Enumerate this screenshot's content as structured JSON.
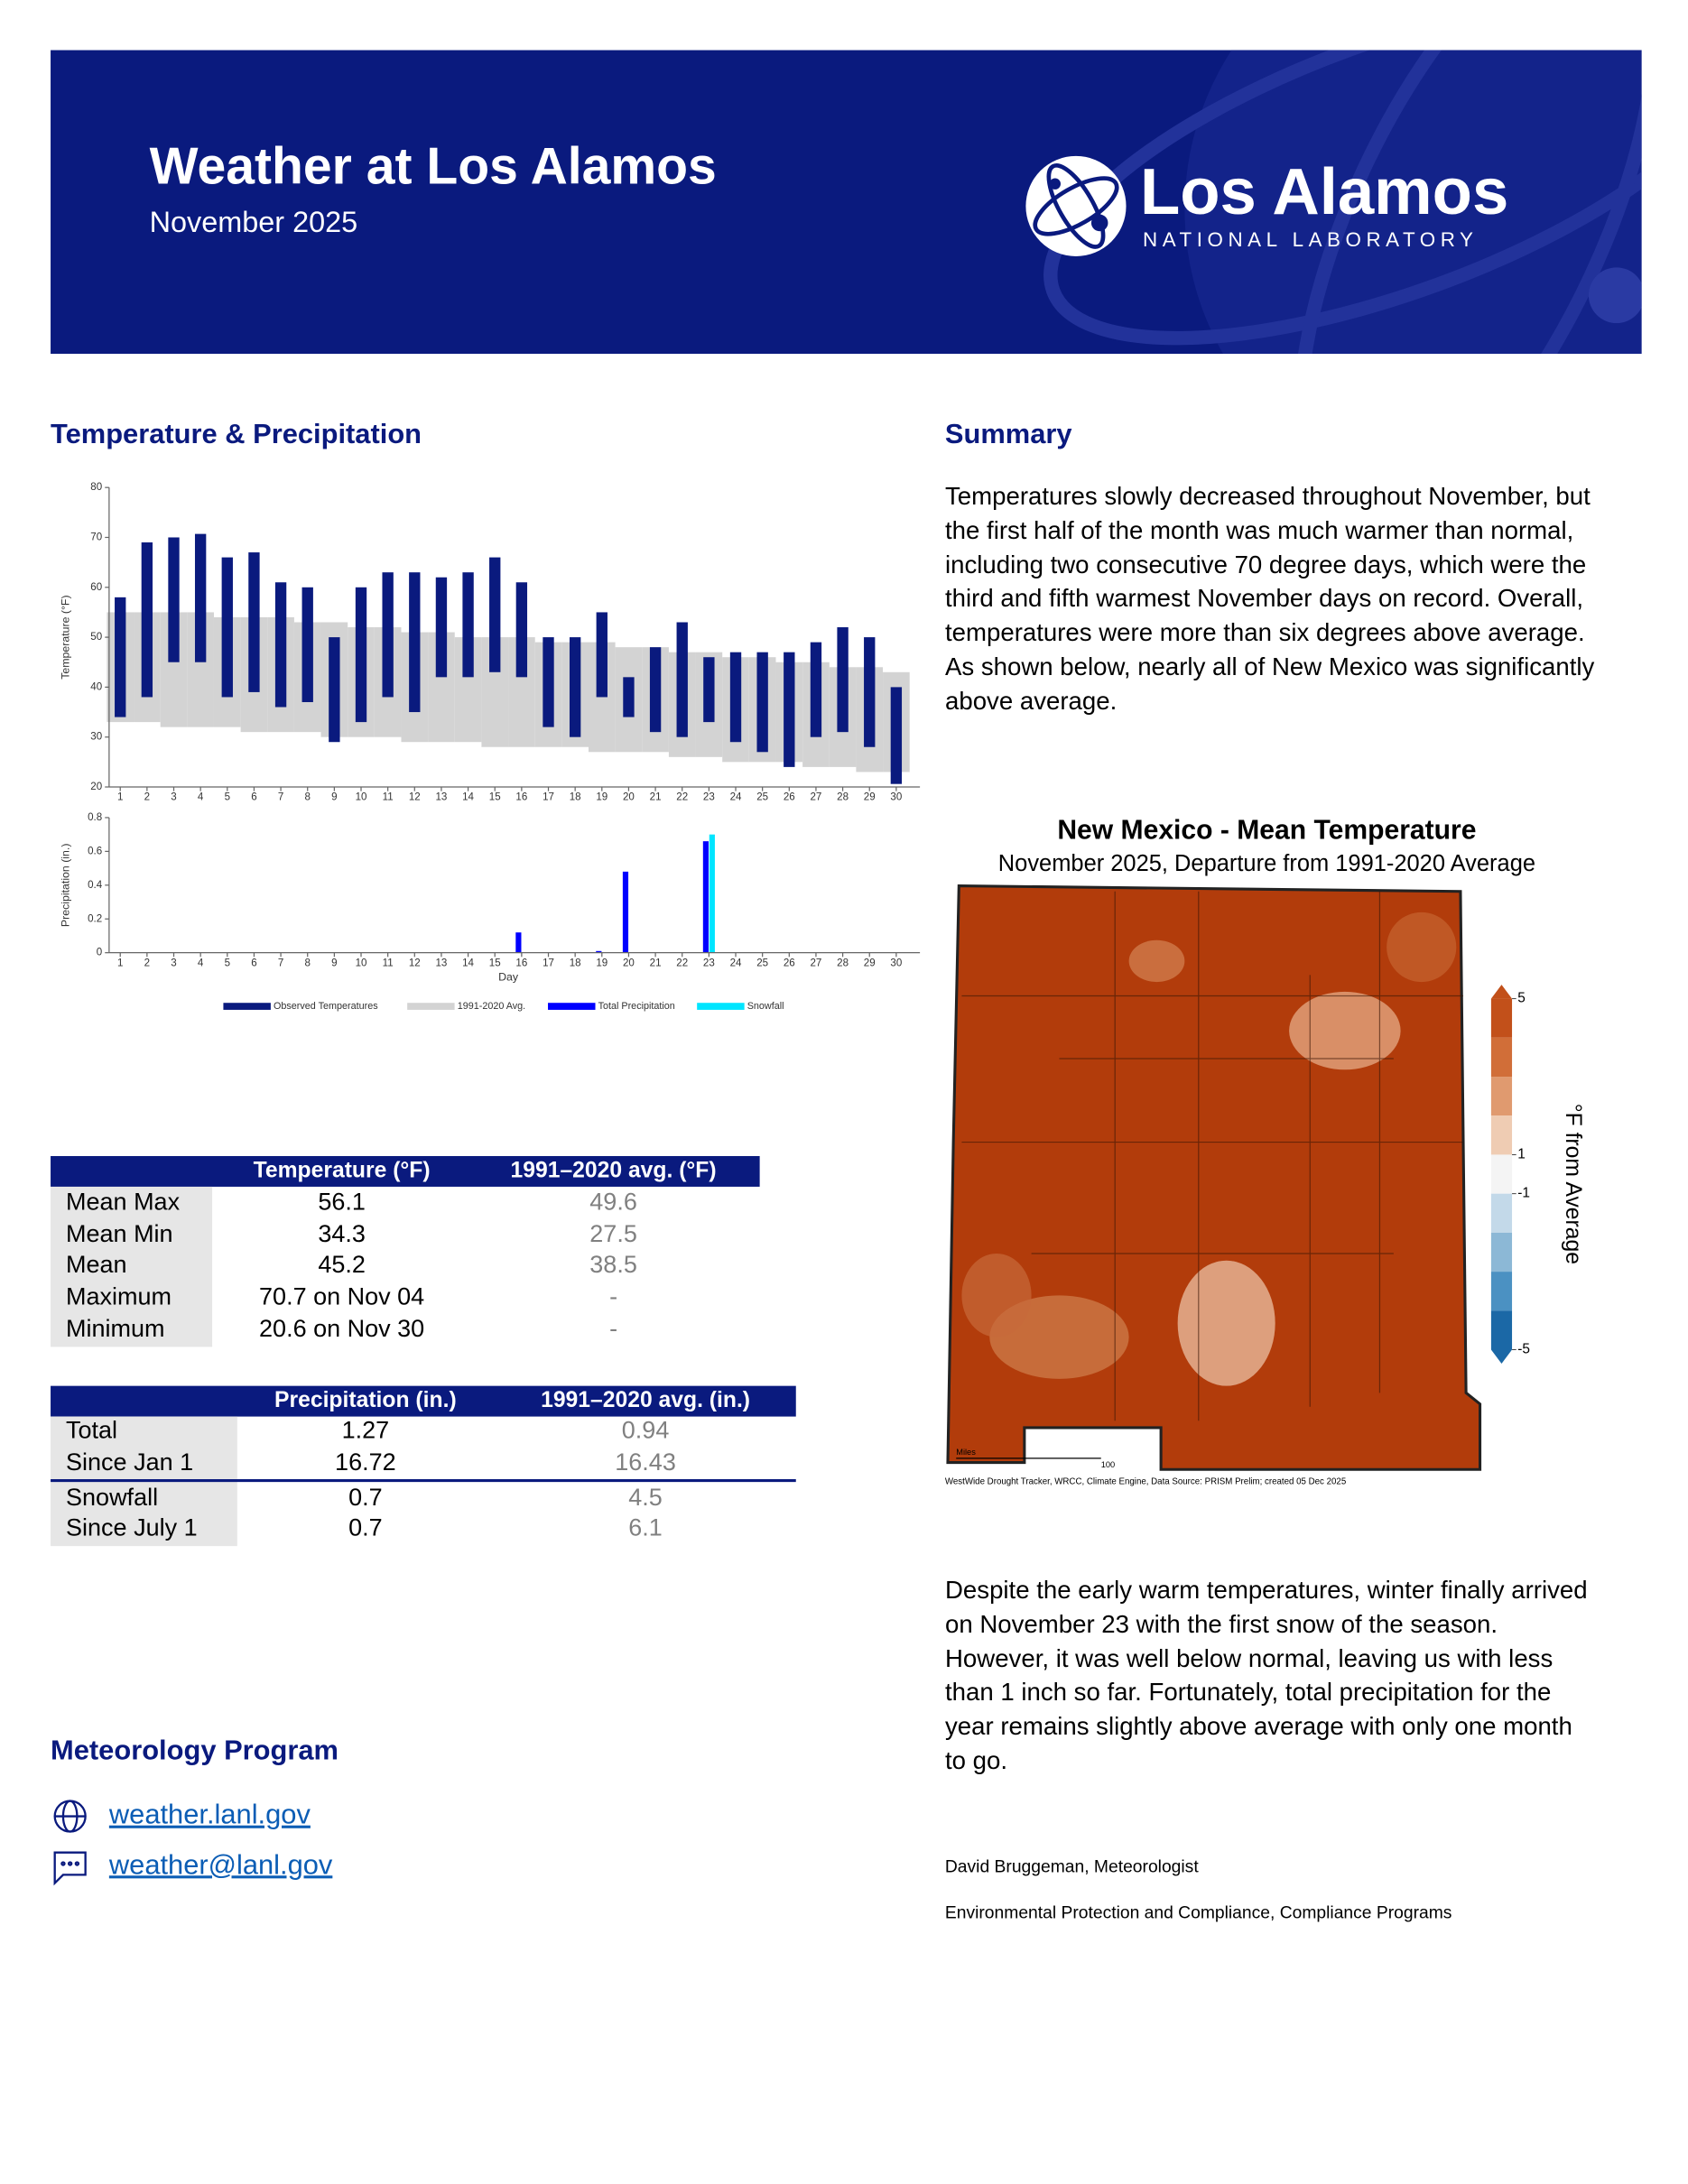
{
  "header": {
    "title": "Weather at Los Alamos",
    "subtitle": "November 2025",
    "logo_name": "Los Alamos",
    "logo_subtitle": "NATIONAL LABORATORY"
  },
  "temp_precip": {
    "heading": "Temperature & Precipitation"
  },
  "chart_data": [
    {
      "type": "floating_bar",
      "y_label": "Temperature (°F)",
      "categories": [
        "1",
        "2",
        "3",
        "4",
        "5",
        "6",
        "7",
        "8",
        "9",
        "10",
        "11",
        "12",
        "13",
        "14",
        "15",
        "16",
        "17",
        "18",
        "19",
        "20",
        "21",
        "22",
        "23",
        "24",
        "25",
        "26",
        "27",
        "28",
        "29",
        "30"
      ],
      "series": [
        {
          "name": "1991-2020 Avg.",
          "color": "#d3d3d3",
          "low": [
            33,
            33,
            32,
            32,
            32,
            31,
            31,
            31,
            30,
            30,
            30,
            29,
            29,
            29,
            28,
            28,
            28,
            28,
            27,
            27,
            27,
            26,
            26,
            25,
            25,
            25,
            24,
            24,
            23,
            23
          ],
          "high": [
            55,
            55,
            55,
            55,
            54,
            54,
            54,
            53,
            53,
            52,
            52,
            51,
            51,
            50,
            50,
            50,
            49,
            49,
            49,
            48,
            48,
            47,
            47,
            46,
            46,
            45,
            45,
            44,
            44,
            43
          ]
        },
        {
          "name": "Observed Temperatures",
          "color": "#0a1a7e",
          "low": [
            34,
            38,
            45,
            45,
            38,
            39,
            36,
            37,
            29,
            33,
            38,
            35,
            42,
            42,
            43,
            42,
            32,
            30,
            38,
            34,
            31,
            30,
            33,
            29,
            27,
            24,
            30,
            31,
            28,
            20.6
          ],
          "high": [
            58,
            69,
            70,
            70.7,
            66,
            67,
            61,
            60,
            50,
            60,
            63,
            63,
            62,
            63,
            66,
            61,
            50,
            50,
            55,
            42,
            48,
            53,
            46,
            47,
            47,
            47,
            49,
            52,
            50,
            40
          ]
        }
      ],
      "ylim": [
        20,
        80
      ],
      "yticks": [
        20,
        30,
        40,
        50,
        60,
        70,
        80
      ]
    },
    {
      "type": "bar",
      "x_label": "Day",
      "y_label": "Precipitation (in.)",
      "categories": [
        "1",
        "2",
        "3",
        "4",
        "5",
        "6",
        "7",
        "8",
        "9",
        "10",
        "11",
        "12",
        "13",
        "14",
        "15",
        "16",
        "17",
        "18",
        "19",
        "20",
        "21",
        "22",
        "23",
        "24",
        "25",
        "26",
        "27",
        "28",
        "29",
        "30"
      ],
      "series": [
        {
          "name": "Total Precipitation",
          "color": "#0000ff",
          "values": [
            0,
            0,
            0,
            0,
            0,
            0,
            0,
            0,
            0,
            0,
            0,
            0,
            0,
            0,
            0,
            0.12,
            0,
            0,
            0.01,
            0.48,
            0,
            0,
            0.66,
            0,
            0,
            0,
            0,
            0,
            0,
            0
          ]
        },
        {
          "name": "Snowfall",
          "color": "#00e5ff",
          "values": [
            0,
            0,
            0,
            0,
            0,
            0,
            0,
            0,
            0,
            0,
            0,
            0,
            0,
            0,
            0,
            0,
            0,
            0,
            0,
            0,
            0,
            0,
            0.7,
            0,
            0,
            0,
            0,
            0,
            0,
            0
          ]
        }
      ],
      "ylim": [
        0,
        0.8
      ],
      "yticks": [
        0,
        0.2,
        0.4,
        0.6,
        0.8
      ]
    }
  ],
  "temperature_table": {
    "columns": [
      "Temperature (°F)",
      "1991–2020 avg. (°F)"
    ],
    "rows": [
      [
        "Mean Max",
        56.1,
        49.6
      ],
      [
        "Mean Min",
        34.3,
        27.5
      ],
      [
        "Mean",
        45.2,
        38.5
      ],
      [
        "Maximum",
        "70.7 on Nov 04",
        "-"
      ],
      [
        "Minimum",
        "20.6 on Nov 30",
        "-"
      ]
    ]
  },
  "precipitation_table": {
    "columns": [
      "Precipitation (in.)",
      "1991–2020 avg. (in.)"
    ],
    "rows": [
      [
        "Total",
        1.27,
        0.94
      ],
      [
        "Since Jan 1",
        16.72,
        16.43
      ],
      [
        "Snowfall",
        0.7,
        4.5
      ],
      [
        "Since July 1",
        0.7,
        6.1
      ]
    ]
  },
  "meteorology": {
    "heading": "Meteorology Program",
    "links": [
      "weather.lanl.gov",
      "weather@lanl.gov"
    ]
  },
  "summary": {
    "heading": "Summary",
    "paragraphs": [
      "Temperatures slowly decreased throughout November, but the first half of the month was much warmer than normal, including two consecutive 70 degree days, which were the third and fifth warmest November days on record. Overall, temperatures were more than six degrees above average. As shown below, nearly all of New Mexico was significantly above average.",
      "Despite the early warm temperatures, winter finally arrived on November 23 with the first snow of the season. However, it was well below normal, leaving us with less than 1 inch so far. Fortunately, total precipitation for the year remains slightly above average with only one month to go."
    ]
  },
  "map": {
    "title": "New Mexico - Mean Temperature",
    "subtitle": "November 2025, Departure from 1991-2020 Average",
    "colorbar_label": "°F from Average",
    "colorbar_ticks": [
      5,
      1,
      -1,
      -5
    ],
    "colorbar_colors": [
      "#c2501a",
      "#d16e38",
      "#e09a6f",
      "#efccb3",
      "#f4f4f4",
      "#c3d9e9",
      "#8cb8d6",
      "#4b91c2",
      "#1b68a6"
    ],
    "scale_unit": "Miles",
    "scale_value": "100",
    "source": "WestWide Drought Tracker, WRCC, Climate Engine, Data Source: PRISM Prelim; created 05 Dec 2025"
  },
  "signature": [
    "David Bruggeman, Meteorologist",
    "Environmental Protection and Compliance, Compliance Programs"
  ]
}
